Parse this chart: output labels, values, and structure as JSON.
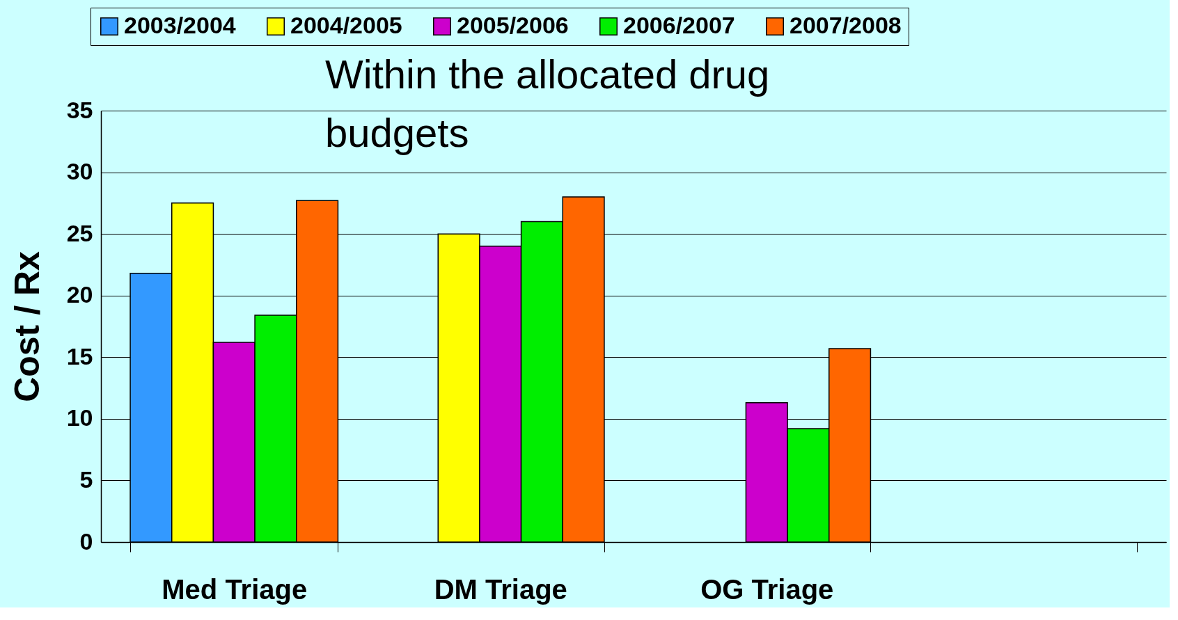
{
  "chart_data": {
    "type": "bar",
    "ylabel": "Cost / Rx",
    "categories": [
      "Med Triage",
      "DM Triage",
      "OG Triage",
      null
    ],
    "series": [
      {
        "name": "2003/2004",
        "color": "#3399ff",
        "values": [
          21.8,
          null,
          null,
          null
        ]
      },
      {
        "name": "2004/2005",
        "color": "#ffff00",
        "values": [
          27.5,
          25,
          null,
          null
        ]
      },
      {
        "name": "2005/2006",
        "color": "#cc00cc",
        "values": [
          16.2,
          24,
          11.3,
          null
        ]
      },
      {
        "name": "2006/2007",
        "color": "#00ee00",
        "values": [
          18.4,
          26,
          9.2,
          null
        ]
      },
      {
        "name": "2007/2008",
        "color": "#ff6600",
        "values": [
          27.7,
          28,
          15.7,
          null
        ]
      }
    ],
    "ylim": [
      0,
      35
    ],
    "yticks": [
      0,
      5,
      10,
      15,
      20,
      25,
      30,
      35
    ],
    "grid": "y",
    "legend": "top",
    "annotations": [
      "Within the allocated drug budgets"
    ]
  }
}
